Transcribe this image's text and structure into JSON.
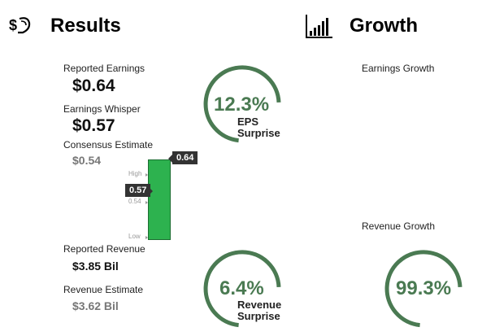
{
  "results": {
    "title": "Results",
    "icon": "money-hand-icon",
    "reported_earnings_label": "Reported Earnings",
    "reported_earnings_value": "$0.64",
    "earnings_whisper_label": "Earnings Whisper",
    "earnings_whisper_value": "$0.57",
    "consensus_label": "Consensus Estimate",
    "consensus_value": "$0.54",
    "eps_surprise_value": "12.3%",
    "eps_surprise_caption_1": "EPS",
    "eps_surprise_caption_2": "Surprise",
    "reported_revenue_label": "Reported Revenue",
    "reported_revenue_value": "$3.85 Bil",
    "revenue_estimate_label": "Revenue Estimate",
    "revenue_estimate_value": "$3.62 Bil",
    "revenue_surprise_value": "6.4%",
    "revenue_surprise_caption_1": "Revenue",
    "revenue_surprise_caption_2": "Surprise"
  },
  "range_chart": {
    "tick_high": "High",
    "tick_mid": "0.54",
    "tick_low": "Low",
    "flag_reported": "0.64",
    "flag_whisper": "0.57",
    "bar_color": "#2db24f"
  },
  "growth": {
    "title": "Growth",
    "icon": "bar-chart-icon",
    "earnings_growth_label": "Earnings Growth",
    "revenue_growth_label": "Revenue Growth",
    "revenue_growth_value": "99.3%"
  },
  "colors": {
    "gauge_arc": "#4a7a52"
  }
}
